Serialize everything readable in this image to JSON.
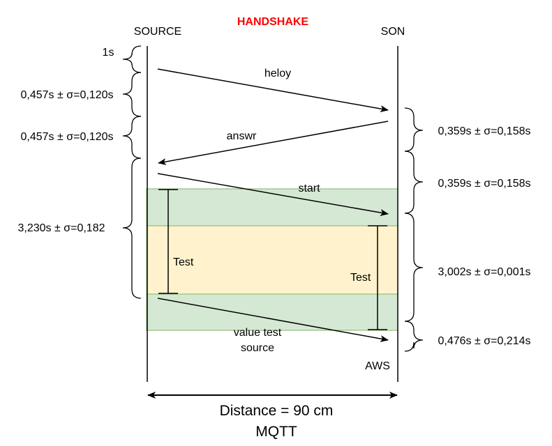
{
  "title": "HANDSHAKE",
  "actors": {
    "left": "SOURCE",
    "right": "SON"
  },
  "aws_label": "AWS",
  "messages": {
    "heloy": "heloy",
    "answr": "answr",
    "start": "start",
    "value_line1": "value test",
    "value_line2": "source"
  },
  "test_labels": {
    "left": "Test",
    "right": "Test"
  },
  "left_braces": {
    "b1": "1s",
    "b2": "0,457s ±  σ=0,120s",
    "b3": "0,457s ±  σ=0,120s",
    "b4": "3,230s ±  σ=0,182"
  },
  "right_braces": {
    "b1": "0,359s ±  σ=0,158s",
    "b2": "0,359s ±  σ=0,158s",
    "b3": "3,002s ±  σ=0,001s",
    "b4": "0,476s ±  σ=0,214s"
  },
  "footer": {
    "distance": "Distance = 90 cm",
    "protocol": "MQTT"
  },
  "colors": {
    "title": "#ff0000",
    "band_green_fill": "#d5e8d4",
    "band_green_stroke": "#82b366",
    "band_yellow_fill": "#fff2cc"
  }
}
